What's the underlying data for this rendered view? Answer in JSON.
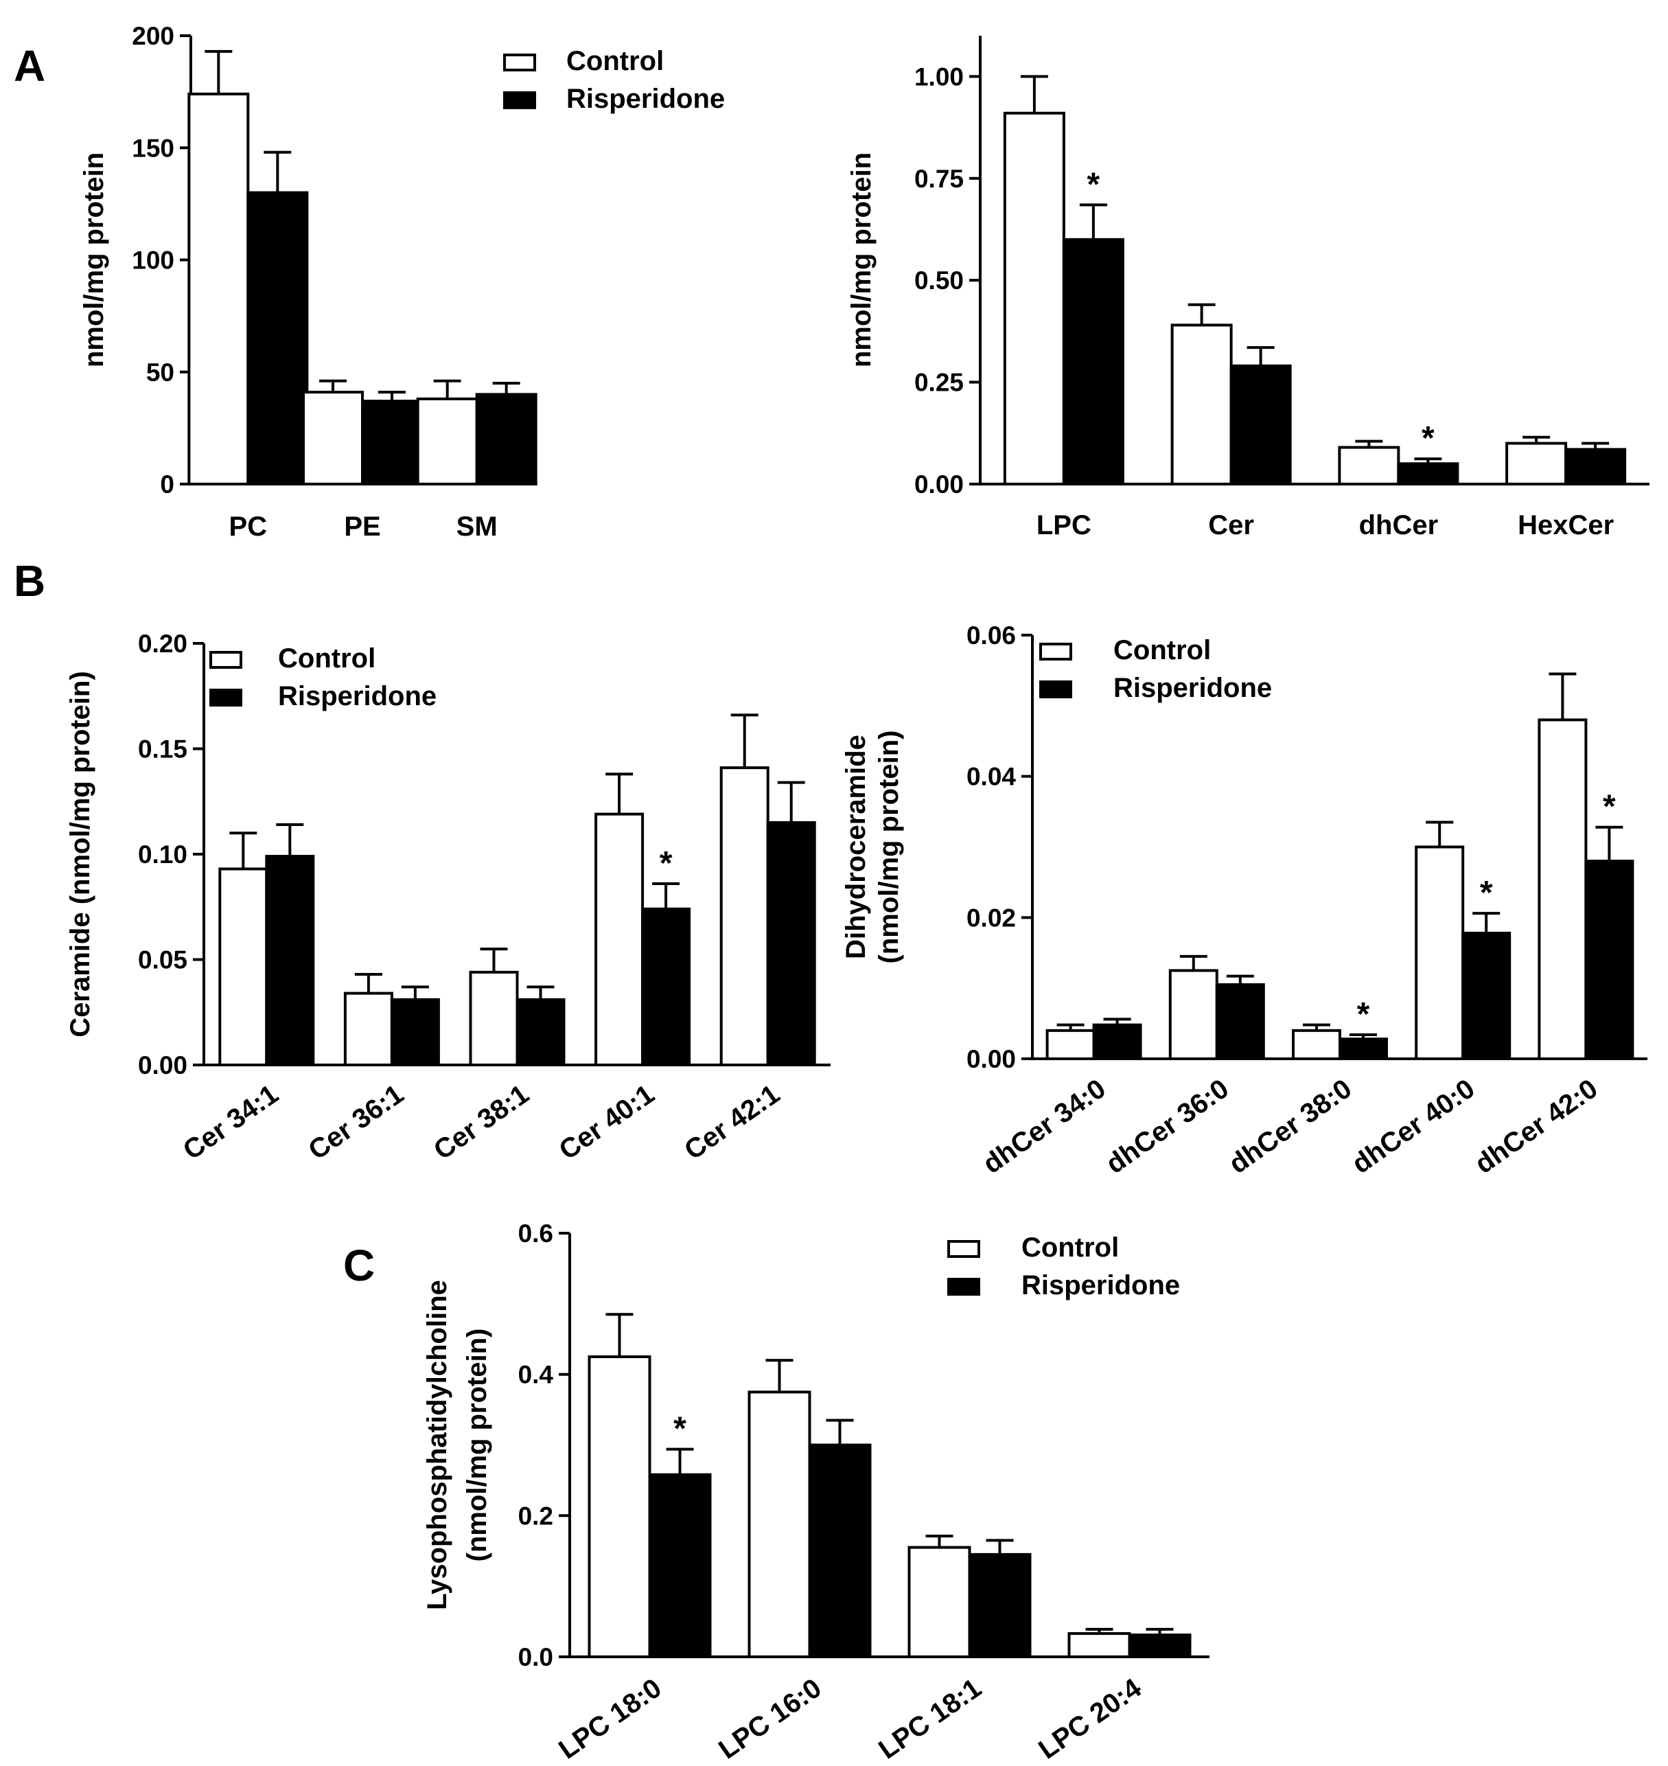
{
  "legend": {
    "control": "Control",
    "risperidone": "Risperidone"
  },
  "chart_data": [
    {
      "id": "A1",
      "panel": "A",
      "type": "bar",
      "title": "",
      "xlabel": "",
      "ylabel": "nmol/mg protein",
      "ylim": [
        0,
        200
      ],
      "yticks": [
        "0",
        "50",
        "100",
        "150",
        "200"
      ],
      "categories": [
        "PC",
        "PE",
        "SM"
      ],
      "series": [
        {
          "name": "Control",
          "values": [
            174,
            41,
            38
          ],
          "errors": [
            19,
            5,
            8
          ]
        },
        {
          "name": "Risperidone",
          "values": [
            130,
            37,
            40
          ],
          "errors": [
            18,
            4,
            5
          ]
        }
      ],
      "significant": [],
      "legend": "top-right",
      "tick_rotation": 0
    },
    {
      "id": "A2",
      "panel": "",
      "type": "bar",
      "title": "",
      "xlabel": "",
      "ylabel": "nmol/mg protein",
      "ylim": [
        0,
        1.1
      ],
      "yticks": [
        "0.00",
        "0.25",
        "0.50",
        "0.75",
        "1.00"
      ],
      "categories": [
        "LPC",
        "Cer",
        "dhCer",
        "HexCer"
      ],
      "series": [
        {
          "name": "Control",
          "values": [
            0.91,
            0.39,
            0.09,
            0.1
          ],
          "errors": [
            0.09,
            0.05,
            0.015,
            0.015
          ]
        },
        {
          "name": "Risperidone",
          "values": [
            0.6,
            0.29,
            0.05,
            0.085
          ],
          "errors": [
            0.085,
            0.045,
            0.012,
            0.015
          ]
        }
      ],
      "significant": [
        0,
        2
      ],
      "legend": "none",
      "tick_rotation": 0
    },
    {
      "id": "B1",
      "panel": "B",
      "type": "bar",
      "title": "",
      "xlabel": "",
      "ylabel": "Ceramide (nmol/mg protein)",
      "ylim": [
        0,
        0.2
      ],
      "yticks": [
        "0.00",
        "0.05",
        "0.10",
        "0.15",
        "0.20"
      ],
      "categories": [
        "Cer 34:1",
        "Cer 36:1",
        "Cer 38:1",
        "Cer 40:1",
        "Cer 42:1"
      ],
      "series": [
        {
          "name": "Control",
          "values": [
            0.093,
            0.034,
            0.044,
            0.119,
            0.141
          ],
          "errors": [
            0.017,
            0.009,
            0.011,
            0.019,
            0.025
          ]
        },
        {
          "name": "Risperidone",
          "values": [
            0.099,
            0.031,
            0.031,
            0.074,
            0.115
          ],
          "errors": [
            0.015,
            0.006,
            0.006,
            0.012,
            0.019
          ]
        }
      ],
      "significant": [
        3
      ],
      "legend": "top-left",
      "tick_rotation": -35
    },
    {
      "id": "B2",
      "panel": "",
      "type": "bar",
      "title": "",
      "xlabel": "",
      "ylabel": [
        "Dihydroceramide",
        "(nmol/mg protein)"
      ],
      "ylim": [
        0,
        0.06
      ],
      "yticks": [
        "0.00",
        "0.02",
        "0.04",
        "0.06"
      ],
      "categories": [
        "dhCer 34:0",
        "dhCer 36:0",
        "dhCer 38:0",
        "dhCer 40:0",
        "dhCer 42:0"
      ],
      "series": [
        {
          "name": "Control",
          "values": [
            0.004,
            0.0125,
            0.004,
            0.03,
            0.048
          ],
          "errors": [
            0.0008,
            0.002,
            0.0008,
            0.0035,
            0.0065
          ]
        },
        {
          "name": "Risperidone",
          "values": [
            0.0048,
            0.0105,
            0.0028,
            0.0178,
            0.028
          ],
          "errors": [
            0.0008,
            0.0012,
            0.0006,
            0.0028,
            0.0048
          ]
        }
      ],
      "significant": [
        2,
        3,
        4
      ],
      "legend": "top-left",
      "tick_rotation": -35
    },
    {
      "id": "C",
      "panel": "C",
      "type": "bar",
      "title": "",
      "xlabel": "",
      "ylabel": [
        "Lysophosphatidylcholine",
        "(nmol/mg protein)"
      ],
      "ylim": [
        0,
        0.6
      ],
      "yticks": [
        "0.0",
        "0.2",
        "0.4",
        "0.6"
      ],
      "categories": [
        "LPC 18:0",
        "LPC 16:0",
        "LPC 18:1",
        "LPC 20:4"
      ],
      "series": [
        {
          "name": "Control",
          "values": [
            0.425,
            0.375,
            0.155,
            0.033
          ],
          "errors": [
            0.06,
            0.045,
            0.016,
            0.006
          ]
        },
        {
          "name": "Risperidone",
          "values": [
            0.258,
            0.3,
            0.145,
            0.031
          ],
          "errors": [
            0.036,
            0.035,
            0.02,
            0.008
          ]
        }
      ],
      "significant": [
        0
      ],
      "legend": "top-right",
      "tick_rotation": -35
    }
  ]
}
